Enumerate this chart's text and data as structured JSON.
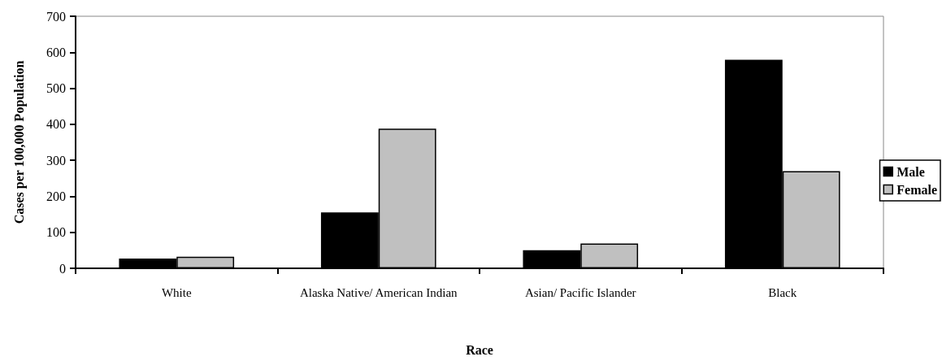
{
  "chart_data": {
    "type": "bar",
    "xlabel": "Race",
    "ylabel": "Cases per 100,000 Population",
    "categories": [
      "White",
      "Alaska Native/ American Indian",
      "Asian/ Pacific Islander",
      "Black"
    ],
    "series": [
      {
        "name": "Male",
        "color": "#000000",
        "values": [
          27,
          155,
          50,
          579
        ]
      },
      {
        "name": "Female",
        "color": "#c0c0c0",
        "values": [
          32,
          388,
          69,
          270
        ]
      }
    ],
    "ylim": [
      0,
      700
    ],
    "yticks": [
      0,
      100,
      200,
      300,
      400,
      500,
      600,
      700
    ],
    "grid": false,
    "legend": "right"
  }
}
